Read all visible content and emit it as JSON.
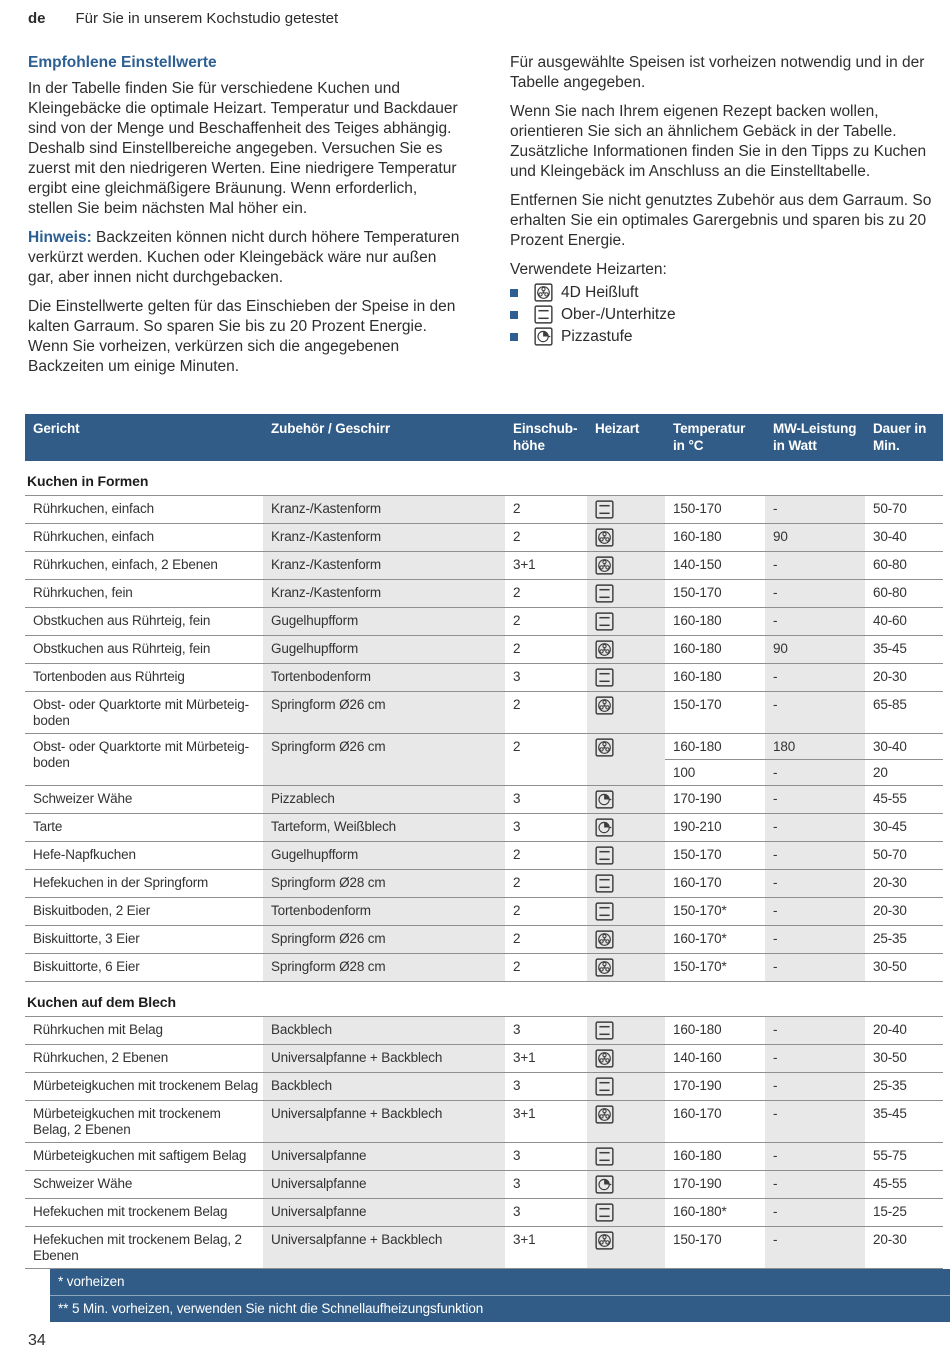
{
  "page": {
    "lang_label": "de",
    "header_title": "Für Sie in unserem Kochstudio getestet",
    "page_number": "34"
  },
  "intro": {
    "heading": "Empfohlene Einstellwerte",
    "left_p1": "In der Tabelle finden Sie für verschiedene Kuchen und Kleingebäcke die optimale Heizart. Temperatur und Backdauer sind von der Menge und Beschaffenheit des Teiges abhängig. Deshalb sind Einstellbereiche angegeben. Versuchen Sie es zuerst mit den niedrigeren Werten. Eine niedrigere Temperatur ergibt eine gleichmäßigere Bräunung. Wenn erforderlich, stellen Sie beim nächsten Mal höher ein.",
    "hinweis_label": "Hinweis:",
    "hinweis_text": " Backzeiten können nicht durch höhere Temperaturen verkürzt werden. Kuchen oder Kleingebäck wäre nur außen gar, aber innen nicht durchgebacken.",
    "left_p2": "Die Einstellwerte gelten für das Einschieben der Speise in den kalten Garraum. So sparen Sie bis zu 20 Prozent Energie. Wenn Sie vorheizen, verkürzen sich die angegebenen Backzeiten um einige Minuten.",
    "right_p1": "Für ausgewählte Speisen ist vorheizen notwendig und in der Tabelle angegeben.",
    "right_p2": "Wenn Sie nach Ihrem eigenen Rezept backen wollen, orientieren Sie sich an ähnlichem Gebäck in der Tabelle. Zusätzliche Informationen finden Sie in den Tipps zu Kuchen und Kleingebäck im Anschluss an die Einstelltabelle.",
    "right_p3": "Entfernen Sie nicht genutztes Zubehör aus dem Garraum. So erhalten Sie ein optimales Garergebnis und sparen bis zu 20 Prozent Energie.",
    "legend_heading": "Verwendete Heizarten:",
    "legend_items": [
      {
        "icon": "heating-4d-icon",
        "label": "4D Heißluft"
      },
      {
        "icon": "heating-top-bottom-icon",
        "label": "Ober-/Unterhitze"
      },
      {
        "icon": "heating-pizza-icon",
        "label": "Pizzastufe"
      }
    ]
  },
  "table": {
    "columns": [
      "Gericht",
      "Zubehör / Geschirr",
      "Einschub-\nhöhe",
      "Heizart",
      "Temperatur\nin °C",
      "MW-Leistung\nin Watt",
      "Dauer in\nMin."
    ],
    "sections": [
      {
        "title": "Kuchen in Formen",
        "rows": [
          {
            "gericht": "Rührkuchen, einfach",
            "zubehoer": "Kranz-/Kastenform",
            "hoehe": "2",
            "heizart": "top-bottom",
            "values": [
              {
                "temp": "150-170",
                "mw": "-",
                "dauer": "50-70"
              }
            ]
          },
          {
            "gericht": "Rührkuchen, einfach",
            "zubehoer": "Kranz-/Kastenform",
            "hoehe": "2",
            "heizart": "4d",
            "values": [
              {
                "temp": "160-180",
                "mw": "90",
                "dauer": "30-40"
              }
            ]
          },
          {
            "gericht": "Rührkuchen, einfach, 2 Ebenen",
            "zubehoer": "Kranz-/Kastenform",
            "hoehe": "3+1",
            "heizart": "4d",
            "values": [
              {
                "temp": "140-150",
                "mw": "-",
                "dauer": "60-80"
              }
            ]
          },
          {
            "gericht": "Rührkuchen, fein",
            "zubehoer": "Kranz-/Kastenform",
            "hoehe": "2",
            "heizart": "top-bottom",
            "values": [
              {
                "temp": "150-170",
                "mw": "-",
                "dauer": "60-80"
              }
            ]
          },
          {
            "gericht": "Obstkuchen aus Rührteig, fein",
            "zubehoer": "Gugelhupfform",
            "hoehe": "2",
            "heizart": "top-bottom",
            "values": [
              {
                "temp": "160-180",
                "mw": "-",
                "dauer": "40-60"
              }
            ]
          },
          {
            "gericht": "Obstkuchen aus Rührteig, fein",
            "zubehoer": "Gugelhupfform",
            "hoehe": "2",
            "heizart": "4d",
            "values": [
              {
                "temp": "160-180",
                "mw": "90",
                "dauer": "35-45"
              }
            ]
          },
          {
            "gericht": "Tortenboden aus Rührteig",
            "zubehoer": "Tortenbodenform",
            "hoehe": "3",
            "heizart": "top-bottom",
            "values": [
              {
                "temp": "160-180",
                "mw": "-",
                "dauer": "20-30"
              }
            ]
          },
          {
            "gericht": "Obst- oder Quarktorte mit Mürbeteig-boden",
            "zubehoer": "Springform Ø26 cm",
            "hoehe": "2",
            "heizart": "4d",
            "values": [
              {
                "temp": "150-170",
                "mw": "-",
                "dauer": "65-85"
              }
            ]
          },
          {
            "gericht": "Obst- oder Quarktorte mit Mürbeteig-boden",
            "zubehoer": "Springform Ø26 cm",
            "hoehe": "2",
            "heizart": "4d",
            "values": [
              {
                "temp": "160-180",
                "mw": "180",
                "dauer": "30-40"
              },
              {
                "temp": "100",
                "mw": "-",
                "dauer": "20"
              }
            ]
          },
          {
            "gericht": "Schweizer Wähe",
            "zubehoer": "Pizzablech",
            "hoehe": "3",
            "heizart": "pizza",
            "values": [
              {
                "temp": "170-190",
                "mw": "-",
                "dauer": "45-55"
              }
            ]
          },
          {
            "gericht": "Tarte",
            "zubehoer": "Tarteform, Weißblech",
            "hoehe": "3",
            "heizart": "pizza",
            "values": [
              {
                "temp": "190-210",
                "mw": "-",
                "dauer": "30-45"
              }
            ]
          },
          {
            "gericht": "Hefe-Napfkuchen",
            "zubehoer": "Gugelhupfform",
            "hoehe": "2",
            "heizart": "top-bottom",
            "values": [
              {
                "temp": "150-170",
                "mw": "-",
                "dauer": "50-70"
              }
            ]
          },
          {
            "gericht": "Hefekuchen in der Springform",
            "zubehoer": "Springform Ø28 cm",
            "hoehe": "2",
            "heizart": "top-bottom",
            "values": [
              {
                "temp": "160-170",
                "mw": "-",
                "dauer": "20-30"
              }
            ]
          },
          {
            "gericht": "Biskuitboden, 2 Eier",
            "zubehoer": "Tortenbodenform",
            "hoehe": "2",
            "heizart": "top-bottom",
            "values": [
              {
                "temp": "150-170*",
                "mw": "-",
                "dauer": "20-30"
              }
            ]
          },
          {
            "gericht": "Biskuittorte, 3 Eier",
            "zubehoer": "Springform Ø26 cm",
            "hoehe": "2",
            "heizart": "4d",
            "values": [
              {
                "temp": "160-170*",
                "mw": "-",
                "dauer": "25-35"
              }
            ]
          },
          {
            "gericht": "Biskuittorte, 6 Eier",
            "zubehoer": "Springform Ø28 cm",
            "hoehe": "2",
            "heizart": "4d",
            "values": [
              {
                "temp": "150-170*",
                "mw": "-",
                "dauer": "30-50"
              }
            ]
          }
        ]
      },
      {
        "title": "Kuchen auf dem Blech",
        "rows": [
          {
            "gericht": "Rührkuchen mit Belag",
            "zubehoer": "Backblech",
            "hoehe": "3",
            "heizart": "top-bottom",
            "values": [
              {
                "temp": "160-180",
                "mw": "-",
                "dauer": "20-40"
              }
            ]
          },
          {
            "gericht": "Rührkuchen, 2 Ebenen",
            "zubehoer": "Universalpfanne + Backblech",
            "hoehe": "3+1",
            "heizart": "4d",
            "values": [
              {
                "temp": "140-160",
                "mw": "-",
                "dauer": "30-50"
              }
            ]
          },
          {
            "gericht": "Mürbeteigkuchen mit trockenem Belag",
            "zubehoer": "Backblech",
            "hoehe": "3",
            "heizart": "top-bottom",
            "values": [
              {
                "temp": "170-190",
                "mw": "-",
                "dauer": "25-35"
              }
            ]
          },
          {
            "gericht": "Mürbeteigkuchen mit trockenem Belag, 2 Ebenen",
            "zubehoer": "Universalpfanne + Backblech",
            "hoehe": "3+1",
            "heizart": "4d",
            "values": [
              {
                "temp": "160-170",
                "mw": "-",
                "dauer": "35-45"
              }
            ]
          },
          {
            "gericht": "Mürbeteigkuchen mit saftigem Belag",
            "zubehoer": "Universalpfanne",
            "hoehe": "3",
            "heizart": "top-bottom",
            "values": [
              {
                "temp": "160-180",
                "mw": "-",
                "dauer": "55-75"
              }
            ]
          },
          {
            "gericht": "Schweizer Wähe",
            "zubehoer": "Universalpfanne",
            "hoehe": "3",
            "heizart": "pizza",
            "values": [
              {
                "temp": "170-190",
                "mw": "-",
                "dauer": "45-55"
              }
            ]
          },
          {
            "gericht": "Hefekuchen mit trockenem Belag",
            "zubehoer": "Universalpfanne",
            "hoehe": "3",
            "heizart": "top-bottom",
            "values": [
              {
                "temp": "160-180*",
                "mw": "-",
                "dauer": "15-25"
              }
            ]
          },
          {
            "gericht": "Hefekuchen mit trockenem Belag, 2 Ebenen",
            "zubehoer": "Universalpfanne + Backblech",
            "hoehe": "3+1",
            "heizart": "4d",
            "values": [
              {
                "temp": "150-170",
                "mw": "-",
                "dauer": "20-30"
              }
            ]
          }
        ]
      }
    ]
  },
  "footnotes": [
    "* vorheizen",
    "** 5 Min. vorheizen, verwenden Sie nicht die Schnellaufheizungsfunktion"
  ],
  "colors": {
    "accent_blue": "#2d5f92",
    "band_blue": "#315c87",
    "column_shade": "#e8e8e8",
    "row_border": "#8f8f8f"
  }
}
